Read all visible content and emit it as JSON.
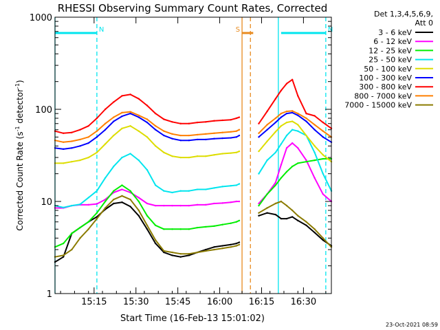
{
  "chart_data": {
    "type": "line",
    "title": "RHESSI Observing Summary Count Rates, Corrected",
    "xlabel": "Start Time (16-Feb-13 15:01:02)",
    "ylabel_main": "Corrected Count Rate (s",
    "ylabel_sup1": "-1",
    "ylabel_mid": " detector",
    "ylabel_sup2": "-1",
    "ylabel_end": ")",
    "yscale": "log",
    "ylim": [
      1,
      1000
    ],
    "xlim": [
      "15:01:02",
      "16:40:00"
    ],
    "x_ticks": [
      "15:15",
      "15:30",
      "15:45",
      "16:00",
      "16:15",
      "16:30"
    ],
    "y_ticks": [
      "1",
      "10",
      "100",
      "1000"
    ],
    "legend": {
      "header": [
        "Det 1,3,4,5,6,9,",
        "Att 0"
      ],
      "position": "top-right outside"
    },
    "flags": [
      {
        "label": "N",
        "color": "#00e5ee",
        "start": "15:01",
        "end": "15:16"
      },
      {
        "label": "N",
        "color": "#00e5ee",
        "start": "16:22",
        "end": "16:38"
      },
      {
        "label": "S",
        "color": "#e88a1e",
        "start": "16:08",
        "end": "16:12"
      }
    ],
    "vlines": [
      {
        "time": "15:01",
        "color": "#00e5ee",
        "style": "solid"
      },
      {
        "time": "15:16",
        "color": "#00e5ee",
        "style": "dashed"
      },
      {
        "time": "16:08",
        "color": "#e88a1e",
        "style": "solid"
      },
      {
        "time": "16:11",
        "color": "#e88a1e",
        "style": "dashed"
      },
      {
        "time": "16:21",
        "color": "#00e5ee",
        "style": "solid"
      },
      {
        "time": "16:38",
        "color": "#00e5ee",
        "style": "dashed"
      }
    ],
    "gap": [
      "16:07",
      "16:14"
    ],
    "series": [
      {
        "name": "3 - 6 keV",
        "color": "#000000",
        "values": [
          2.2,
          2.5,
          4.5,
          5.2,
          6,
          6.8,
          8.2,
          9.5,
          9.8,
          8.8,
          7,
          5,
          3.5,
          2.8,
          2.6,
          2.5,
          2.6,
          2.8,
          3,
          3.2,
          3.3,
          3.4,
          3.5,
          3.6,
          7,
          7.5,
          7.2,
          6.5,
          6.5,
          6.8,
          6.2,
          5.5,
          4.6,
          3.8,
          3.3
        ]
      },
      {
        "name": "6 - 12 keV",
        "color": "#ff00ff",
        "values": [
          8.5,
          8.5,
          9,
          9.2,
          9.2,
          9.4,
          10.5,
          12.5,
          13.5,
          12.5,
          11,
          9.5,
          9,
          9,
          9,
          9,
          9,
          9.2,
          9.2,
          9.5,
          9.6,
          9.8,
          10,
          10,
          9.5,
          12,
          16,
          25,
          38,
          43,
          38,
          28,
          18,
          12,
          10
        ]
      },
      {
        "name": "12 - 25 keV",
        "color": "#00ee00",
        "values": [
          3.2,
          3.5,
          4.5,
          5.2,
          6,
          7.5,
          10,
          13,
          15,
          13,
          10,
          7,
          5.5,
          5,
          5,
          5,
          5,
          5.2,
          5.3,
          5.4,
          5.6,
          5.8,
          6,
          6.2,
          9,
          12,
          15,
          18,
          21,
          24,
          26,
          27,
          28,
          29,
          29
        ]
      },
      {
        "name": "25 - 50 keV",
        "color": "#00e5ee",
        "values": [
          9,
          8.6,
          9,
          9.3,
          11,
          13,
          18,
          24,
          30,
          33,
          28,
          22,
          15,
          13,
          12.5,
          13,
          13,
          13.5,
          13.5,
          14,
          14.5,
          14.8,
          15,
          15.5,
          20,
          28,
          34,
          42,
          52,
          60,
          58,
          52,
          34,
          20,
          13
        ]
      },
      {
        "name": "50 - 100 keV",
        "color": "#dddd00",
        "values": [
          26,
          26,
          27,
          28,
          30,
          34,
          42,
          52,
          62,
          66,
          58,
          50,
          40,
          34,
          31,
          30,
          30,
          31,
          31,
          32,
          33,
          33.5,
          34,
          35,
          35,
          45,
          57,
          66,
          72,
          74,
          68,
          52,
          40,
          32,
          27
        ]
      },
      {
        "name": "100 - 300 keV",
        "color": "#0000ff",
        "values": [
          38,
          37,
          38,
          40,
          43,
          50,
          60,
          74,
          84,
          90,
          82,
          72,
          60,
          52,
          48,
          46,
          46,
          47,
          47,
          48,
          48.5,
          49,
          50,
          52,
          50,
          60,
          72,
          82,
          90,
          92,
          86,
          74,
          60,
          50,
          44
        ]
      },
      {
        "name": "300 - 800 keV",
        "color": "#ff0000",
        "values": [
          58,
          55,
          56,
          60,
          66,
          80,
          100,
          120,
          140,
          145,
          130,
          110,
          90,
          78,
          73,
          70,
          70,
          72,
          73,
          75,
          76,
          77,
          80,
          82,
          70,
          95,
          130,
          160,
          190,
          210,
          140,
          90,
          85,
          72,
          62
        ]
      },
      {
        "name": "800 - 7000 keV",
        "color": "#ff7f00",
        "values": [
          46,
          44,
          45,
          47,
          50,
          58,
          70,
          82,
          92,
          94,
          86,
          78,
          66,
          58,
          54,
          52,
          52,
          53,
          54,
          55,
          56,
          57,
          58,
          60,
          55,
          68,
          80,
          90,
          95,
          96,
          90,
          80,
          68,
          58,
          50
        ]
      },
      {
        "name": "7000 - 15000 keV",
        "color": "#8b7b00",
        "values": [
          2.5,
          2.6,
          3,
          4,
          5,
          6.5,
          8.5,
          10.5,
          11.5,
          10.5,
          8,
          5.5,
          3.8,
          2.9,
          2.8,
          2.7,
          2.7,
          2.8,
          2.9,
          3,
          3.1,
          3.2,
          3.3,
          3.4,
          7.5,
          8.5,
          9.5,
          10,
          9,
          8,
          7,
          6,
          5,
          4,
          3.2
        ]
      }
    ],
    "x": [
      "15:01",
      "15:04",
      "15:07",
      "15:10",
      "15:13",
      "15:16",
      "15:19",
      "15:22",
      "15:25",
      "15:28",
      "15:31",
      "15:34",
      "15:37",
      "15:40",
      "15:43",
      "15:46",
      "15:49",
      "15:52",
      "15:55",
      "15:58",
      "16:01",
      "16:04",
      "16:06",
      "16:07",
      "16:14",
      "16:17",
      "16:20",
      "16:22",
      "16:24",
      "16:26",
      "16:28",
      "16:31",
      "16:34",
      "16:37",
      "16:40"
    ],
    "footer": "23-Oct-2021 08:59"
  }
}
